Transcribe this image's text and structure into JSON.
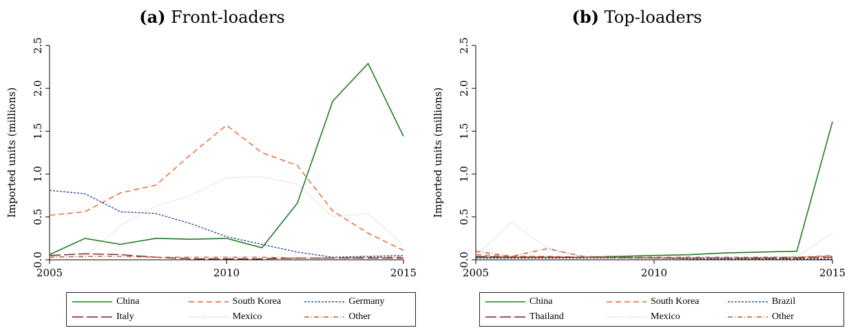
{
  "panels": [
    {
      "label": "(a)",
      "title": "Front-loaders",
      "ylabel": "Imported units (millions)"
    },
    {
      "label": "(b)",
      "title": "Top-loaders",
      "ylabel": "Imported units (millions)"
    }
  ],
  "chart_data": [
    {
      "type": "line",
      "title": "(a) Front-loaders",
      "xlabel": "",
      "ylabel": "Imported units (millions)",
      "xlim": [
        2005,
        2015
      ],
      "ylim": [
        0,
        2.5
      ],
      "x_ticks": [
        "2005",
        "2010",
        "2015"
      ],
      "y_ticks": [
        "0.0",
        "0.5",
        "1.0",
        "1.5",
        "2.0",
        "2.5"
      ],
      "grid": false,
      "legend_position": "bottom",
      "x": [
        2005,
        2006,
        2007,
        2008,
        2009,
        2010,
        2011,
        2012,
        2013,
        2014,
        2015
      ],
      "series": [
        {
          "name": "China",
          "color": "#1e7b1e",
          "dash": "solid",
          "values": [
            0.06,
            0.25,
            0.18,
            0.25,
            0.24,
            0.25,
            0.14,
            0.66,
            1.85,
            2.29,
            1.44
          ]
        },
        {
          "name": "South Korea",
          "color": "#f15a24",
          "dash": "8,5",
          "values": [
            0.52,
            0.56,
            0.78,
            0.87,
            1.23,
            1.57,
            1.25,
            1.1,
            0.57,
            0.31,
            0.11
          ]
        },
        {
          "name": "Germany",
          "color": "#2b4d8c",
          "dash": "3,2",
          "values": [
            0.81,
            0.77,
            0.56,
            0.54,
            0.42,
            0.27,
            0.18,
            0.09,
            0.03,
            0.04,
            0.05
          ]
        },
        {
          "name": "Italy",
          "color": "#7b1f1f",
          "dash": "16,5",
          "values": [
            0.05,
            0.07,
            0.06,
            0.03,
            0.01,
            0.01,
            0.01,
            0.02,
            0.02,
            0.02,
            0.02
          ]
        },
        {
          "name": "Mexico",
          "color": "#c0c0c0",
          "dash": "1,2",
          "values": [
            0.04,
            0.03,
            0.4,
            0.63,
            0.75,
            0.96,
            0.97,
            0.88,
            0.5,
            0.54,
            0.17
          ]
        },
        {
          "name": "Other",
          "color": "#b5573a",
          "dash": "7,3,1,3",
          "values": [
            0.03,
            0.04,
            0.04,
            0.03,
            0.03,
            0.03,
            0.03,
            0.02,
            0.02,
            0.03,
            0.03
          ]
        }
      ]
    },
    {
      "type": "line",
      "title": "(b) Top-loaders",
      "xlabel": "",
      "ylabel": "Imported units (millions)",
      "xlim": [
        2005,
        2015
      ],
      "ylim": [
        0,
        2.5
      ],
      "x_ticks": [
        "2005",
        "2010",
        "2015"
      ],
      "y_ticks": [
        "0.0",
        "0.5",
        "1.0",
        "1.5",
        "2.0",
        "2.5"
      ],
      "grid": false,
      "legend_position": "bottom",
      "x": [
        2005,
        2006,
        2007,
        2008,
        2009,
        2010,
        2011,
        2012,
        2013,
        2014,
        2015
      ],
      "series": [
        {
          "name": "China",
          "color": "#1e7b1e",
          "dash": "solid",
          "values": [
            0.03,
            0.03,
            0.03,
            0.03,
            0.04,
            0.05,
            0.06,
            0.08,
            0.09,
            0.1,
            1.61
          ]
        },
        {
          "name": "South Korea",
          "color": "#f15a24",
          "dash": "8,5",
          "values": [
            0.06,
            0.04,
            0.04,
            0.03,
            0.02,
            0.02,
            0.02,
            0.02,
            0.02,
            0.03,
            0.05
          ]
        },
        {
          "name": "Brazil",
          "color": "#2b4d8c",
          "dash": "3,2",
          "values": [
            0.02,
            0.02,
            0.02,
            0.02,
            0.02,
            0.02,
            0.01,
            0.01,
            0.01,
            0.01,
            0.01
          ]
        },
        {
          "name": "Thailand",
          "color": "#7b1f1f",
          "dash": "16,5",
          "values": [
            0.04,
            0.03,
            0.03,
            0.03,
            0.03,
            0.02,
            0.02,
            0.02,
            0.02,
            0.02,
            0.03
          ]
        },
        {
          "name": "Mexico",
          "color": "#c0c0c0",
          "dash": "1,2",
          "values": [
            0.05,
            0.43,
            0.14,
            0.03,
            0.02,
            0.02,
            0.02,
            0.02,
            0.03,
            0.04,
            0.31
          ]
        },
        {
          "name": "Other",
          "color": "#b5573a",
          "dash": "7,3,1,3",
          "values": [
            0.1,
            0.04,
            0.13,
            0.04,
            0.03,
            0.03,
            0.03,
            0.03,
            0.03,
            0.03,
            0.04
          ]
        }
      ]
    }
  ]
}
